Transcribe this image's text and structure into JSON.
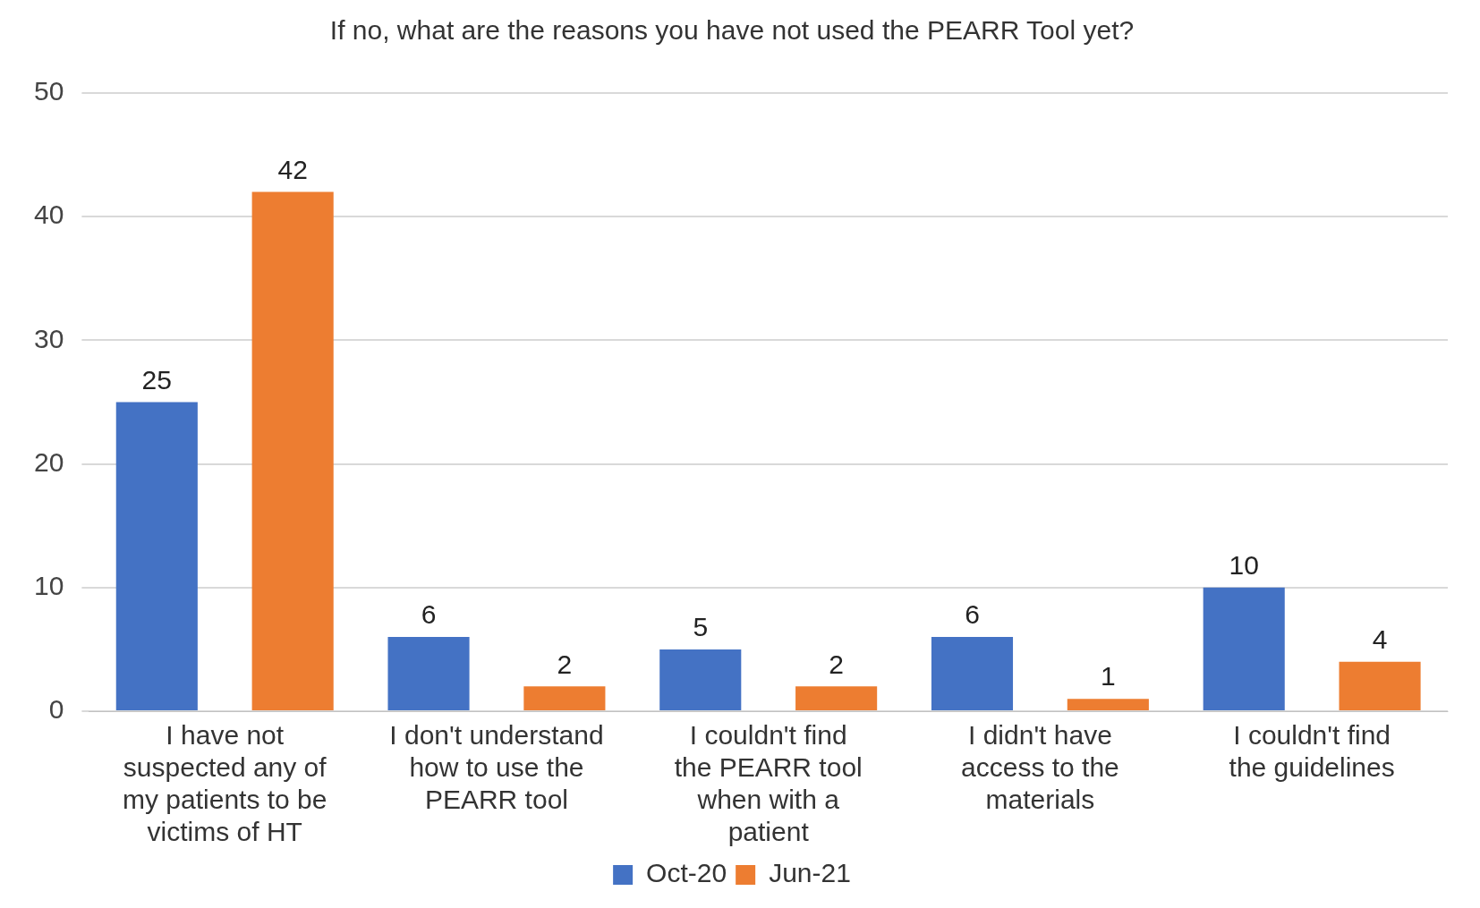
{
  "chart_data": {
    "type": "bar",
    "title": "If no, what are the reasons you have not used the PEARR Tool yet?",
    "categories": [
      "I have not suspected any of my patients to be victims of HT",
      "I don't understand how to use the PEARR tool",
      "I couldn't find the PEARR tool when with a patient",
      "I didn't have access to the materials",
      "I couldn't find the guidelines"
    ],
    "series": [
      {
        "name": "Oct-20",
        "color": "#4472c4",
        "values": [
          25,
          6,
          5,
          6,
          10
        ]
      },
      {
        "name": "Jun-21",
        "color": "#ed7d31",
        "values": [
          42,
          2,
          2,
          1,
          4
        ]
      }
    ],
    "ylim": [
      0,
      50
    ],
    "yticks": [
      0,
      10,
      20,
      30,
      40,
      50
    ],
    "grid": "y",
    "legend": "bottom",
    "data_labels": true
  }
}
